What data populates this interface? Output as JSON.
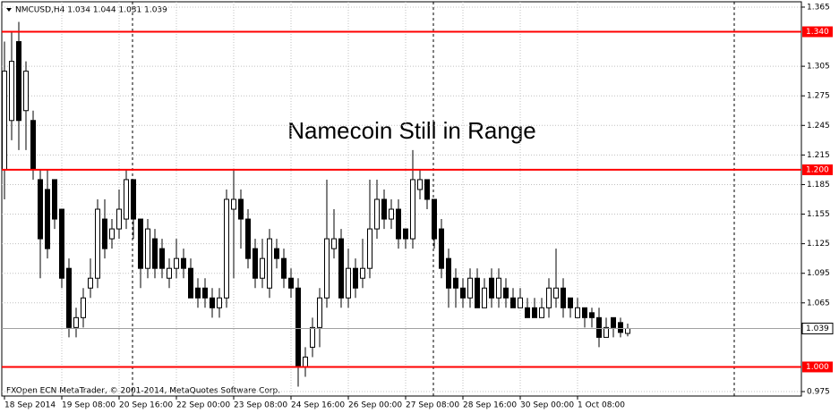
{
  "chart_data": {
    "type": "candlestick",
    "header": "NMCUSD,H4  1.034 1.044 1.031 1.039",
    "title": "Namecoin Still in Range",
    "footer": "FXOpen ECN MetaTrader, © 2001-2014, MetaQuotes Software Corp.",
    "categories": [
      "18 Sep 2014",
      null,
      null,
      null,
      null,
      null,
      null,
      null,
      "19 Sep 08:00",
      null,
      null,
      null,
      null,
      null,
      null,
      null,
      "20 Sep 16:00",
      null,
      null,
      null,
      null,
      null,
      null,
      null,
      "22 Sep 00:00",
      null,
      null,
      null,
      null,
      null,
      null,
      null,
      "23 Sep 08:00",
      null,
      null,
      null,
      null,
      null,
      null,
      null,
      "24 Sep 16:00",
      null,
      null,
      null,
      null,
      null,
      null,
      null,
      "26 Sep 00:00",
      null,
      null,
      null,
      null,
      null,
      null,
      null,
      "27 Sep 08:00",
      null,
      null,
      null,
      null,
      null,
      null,
      null,
      "28 Sep 16:00",
      null,
      null,
      null,
      null,
      null,
      null,
      null,
      "30 Sep 00:00",
      null,
      null,
      null,
      null,
      null,
      null,
      null,
      "1 Oct 08:00",
      null,
      null,
      null,
      null,
      null,
      null,
      null
    ],
    "ohlc": [
      [
        1.2,
        1.33,
        1.17,
        1.3
      ],
      [
        1.25,
        1.34,
        1.23,
        1.31
      ],
      [
        1.33,
        1.35,
        1.22,
        1.25
      ],
      [
        1.26,
        1.31,
        1.22,
        1.3
      ],
      [
        1.25,
        1.26,
        1.19,
        1.2
      ],
      [
        1.19,
        1.2,
        1.09,
        1.13
      ],
      [
        1.18,
        1.2,
        1.11,
        1.12
      ],
      [
        1.19,
        1.19,
        1.14,
        1.15
      ],
      [
        1.16,
        1.16,
        1.08,
        1.09
      ],
      [
        1.1,
        1.11,
        1.03,
        1.04
      ],
      [
        1.04,
        1.06,
        1.03,
        1.05
      ],
      [
        1.05,
        1.08,
        1.04,
        1.07
      ],
      [
        1.08,
        1.11,
        1.07,
        1.09
      ],
      [
        1.09,
        1.17,
        1.08,
        1.16
      ],
      [
        1.15,
        1.17,
        1.11,
        1.12
      ],
      [
        1.13,
        1.15,
        1.12,
        1.14
      ],
      [
        1.14,
        1.18,
        1.13,
        1.16
      ],
      [
        1.15,
        1.2,
        1.14,
        1.19
      ],
      [
        1.19,
        1.19,
        1.13,
        1.15
      ],
      [
        1.15,
        1.15,
        1.08,
        1.1
      ],
      [
        1.1,
        1.15,
        1.09,
        1.14
      ],
      [
        1.13,
        1.14,
        1.09,
        1.1
      ],
      [
        1.12,
        1.13,
        1.09,
        1.1
      ],
      [
        1.09,
        1.11,
        1.08,
        1.1
      ],
      [
        1.1,
        1.13,
        1.09,
        1.11
      ],
      [
        1.11,
        1.12,
        1.09,
        1.1
      ],
      [
        1.1,
        1.11,
        1.07,
        1.07
      ],
      [
        1.08,
        1.09,
        1.06,
        1.07
      ],
      [
        1.08,
        1.09,
        1.06,
        1.07
      ],
      [
        1.07,
        1.08,
        1.05,
        1.06
      ],
      [
        1.06,
        1.08,
        1.05,
        1.07
      ],
      [
        1.07,
        1.18,
        1.06,
        1.17
      ],
      [
        1.16,
        1.2,
        1.09,
        1.17
      ],
      [
        1.17,
        1.18,
        1.12,
        1.15
      ],
      [
        1.15,
        1.16,
        1.1,
        1.11
      ],
      [
        1.12,
        1.13,
        1.08,
        1.09
      ],
      [
        1.09,
        1.13,
        1.08,
        1.11
      ],
      [
        1.08,
        1.14,
        1.07,
        1.13
      ],
      [
        1.12,
        1.13,
        1.1,
        1.11
      ],
      [
        1.11,
        1.12,
        1.08,
        1.09
      ],
      [
        1.09,
        1.1,
        1.07,
        1.08
      ],
      [
        1.08,
        1.09,
        0.98,
        1.0
      ],
      [
        1.0,
        1.02,
        0.99,
        1.01
      ],
      [
        1.02,
        1.05,
        1.01,
        1.04
      ],
      [
        1.04,
        1.08,
        1.02,
        1.07
      ],
      [
        1.07,
        1.19,
        1.06,
        1.13
      ],
      [
        1.12,
        1.16,
        1.11,
        1.13
      ],
      [
        1.13,
        1.14,
        1.06,
        1.07
      ],
      [
        1.07,
        1.12,
        1.06,
        1.1
      ],
      [
        1.1,
        1.11,
        1.07,
        1.08
      ],
      [
        1.09,
        1.13,
        1.08,
        1.1
      ],
      [
        1.1,
        1.19,
        1.09,
        1.14
      ],
      [
        1.14,
        1.19,
        1.13,
        1.17
      ],
      [
        1.17,
        1.18,
        1.14,
        1.15
      ],
      [
        1.15,
        1.17,
        1.14,
        1.16
      ],
      [
        1.16,
        1.17,
        1.12,
        1.13
      ],
      [
        1.14,
        1.14,
        1.12,
        1.13
      ],
      [
        1.13,
        1.22,
        1.12,
        1.19
      ],
      [
        1.18,
        1.2,
        1.17,
        1.19
      ],
      [
        1.19,
        1.19,
        1.16,
        1.17
      ],
      [
        1.17,
        1.17,
        1.12,
        1.13
      ],
      [
        1.14,
        1.15,
        1.09,
        1.1
      ],
      [
        1.11,
        1.12,
        1.06,
        1.08
      ],
      [
        1.09,
        1.1,
        1.06,
        1.08
      ],
      [
        1.08,
        1.09,
        1.06,
        1.07
      ],
      [
        1.07,
        1.1,
        1.06,
        1.09
      ],
      [
        1.09,
        1.1,
        1.06,
        1.06
      ],
      [
        1.06,
        1.09,
        1.06,
        1.08
      ],
      [
        1.09,
        1.1,
        1.06,
        1.07
      ],
      [
        1.07,
        1.1,
        1.06,
        1.09
      ],
      [
        1.08,
        1.09,
        1.06,
        1.07
      ],
      [
        1.07,
        1.08,
        1.06,
        1.06
      ],
      [
        1.06,
        1.08,
        1.06,
        1.07
      ],
      [
        1.06,
        1.07,
        1.05,
        1.05
      ],
      [
        1.06,
        1.07,
        1.05,
        1.05
      ],
      [
        1.05,
        1.07,
        1.05,
        1.06
      ],
      [
        1.06,
        1.09,
        1.05,
        1.08
      ],
      [
        1.07,
        1.12,
        1.06,
        1.08
      ],
      [
        1.08,
        1.09,
        1.05,
        1.06
      ],
      [
        1.07,
        1.07,
        1.05,
        1.06
      ],
      [
        1.05,
        1.07,
        1.05,
        1.06
      ],
      [
        1.06,
        1.06,
        1.04,
        1.05
      ],
      [
        1.055,
        1.06,
        1.04,
        1.05
      ],
      [
        1.05,
        1.06,
        1.02,
        1.03
      ],
      [
        1.03,
        1.05,
        1.03,
        1.04
      ],
      [
        1.05,
        1.05,
        1.03,
        1.04
      ],
      [
        1.045,
        1.05,
        1.03,
        1.035
      ],
      [
        1.034,
        1.044,
        1.031,
        1.039
      ]
    ],
    "ylim": [
      0.9705,
      1.3704
    ],
    "yticks": [
      1.365,
      1.305,
      1.275,
      1.245,
      1.215,
      1.185,
      1.155,
      1.125,
      1.095,
      1.065,
      0.975
    ],
    "grid": true,
    "levels": [
      {
        "value": 1.34,
        "label": "1.340"
      },
      {
        "value": 1.2,
        "label": "1.200"
      },
      {
        "value": 1.0,
        "label": "1.000"
      }
    ],
    "level_color": "#ff0000",
    "last_price": 1.039
  }
}
